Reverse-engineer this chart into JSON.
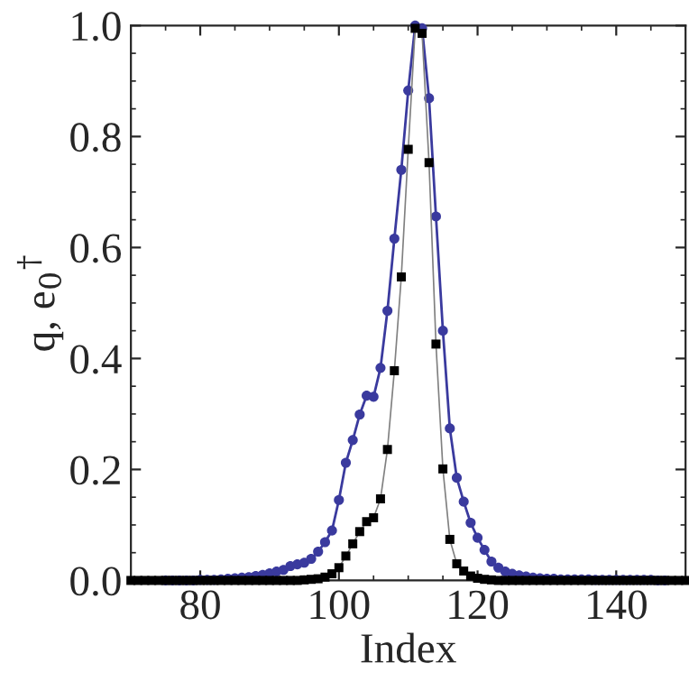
{
  "chart_data": {
    "type": "line",
    "xlabel": "Index",
    "ylabel": "q, e$_{0}$$^{†}$",
    "x": [
      70,
      71,
      72,
      73,
      74,
      75,
      76,
      77,
      78,
      79,
      80,
      81,
      82,
      83,
      84,
      85,
      86,
      87,
      88,
      89,
      90,
      91,
      92,
      93,
      94,
      95,
      96,
      97,
      98,
      99,
      100,
      101,
      102,
      103,
      104,
      105,
      106,
      107,
      108,
      109,
      110,
      111,
      112,
      113,
      114,
      115,
      116,
      117,
      118,
      119,
      120,
      121,
      122,
      123,
      124,
      125,
      126,
      127,
      128,
      129,
      130,
      131,
      132,
      133,
      134,
      135,
      136,
      137,
      138,
      139,
      140,
      141,
      142,
      143,
      144,
      145,
      146,
      147,
      148,
      149,
      150
    ],
    "series": [
      {
        "color": "#3a3a9e",
        "marker": "circle",
        "values": [
          null,
          null,
          null,
          null,
          null,
          0,
          0,
          0,
          0,
          0,
          0.001,
          0.001,
          0.001,
          0.002,
          0.003,
          0.004,
          0.005,
          0.006,
          0.008,
          0.01,
          0.013,
          0.016,
          0.019,
          0.026,
          0.029,
          0.032,
          0.039,
          0.052,
          0.069,
          0.09,
          0.145,
          0.212,
          0.253,
          0.299,
          0.333,
          0.331,
          0.383,
          0.486,
          0.616,
          0.74,
          0.883,
          1.0,
          0.995,
          0.869,
          0.656,
          0.45,
          0.274,
          0.185,
          0.142,
          0.104,
          0.077,
          0.055,
          0.034,
          0.023,
          0.016,
          0.012,
          0.009,
          0.007,
          0.005,
          0.004,
          0.003,
          0.003,
          0.002,
          0.002,
          0.002,
          0.002,
          0.002,
          0.001,
          0.001,
          0.001,
          0.001,
          0.001,
          0.001,
          0.001,
          0.001,
          0.001,
          0,
          0,
          null,
          null,
          null
        ]
      },
      {
        "color": "#000000",
        "marker": "square",
        "values": [
          0,
          0,
          0,
          0,
          0,
          0,
          0,
          0,
          0,
          0,
          0,
          0,
          0,
          0,
          0,
          0,
          0,
          0,
          0,
          0,
          0,
          0,
          0,
          0,
          0,
          0.001,
          0.002,
          0.003,
          0.006,
          0.012,
          0.023,
          0.044,
          0.066,
          0.088,
          0.106,
          0.113,
          0.147,
          0.236,
          0.378,
          0.547,
          0.777,
          0.995,
          0.986,
          0.753,
          0.426,
          0.201,
          0.074,
          0.03,
          0.017,
          0.008,
          0.004,
          0.002,
          0.001,
          0,
          0,
          0,
          0,
          0,
          0,
          0,
          0,
          0,
          0,
          0,
          0,
          0,
          0,
          0,
          0,
          0,
          0,
          0,
          0,
          0,
          0,
          0,
          0,
          0,
          0,
          0,
          0
        ]
      }
    ],
    "xlim": [
      70,
      150
    ],
    "xticks": [
      80,
      100,
      120,
      140
    ],
    "ylim": [
      0,
      1.0
    ],
    "yticks": [
      {
        "value": 0,
        "label": "0.0"
      },
      {
        "value": 0.2,
        "label": "0.2"
      },
      {
        "value": 0.4,
        "label": "0.4"
      },
      {
        "value": 0.6,
        "label": "0.6"
      },
      {
        "value": 0.8,
        "label": "0.8"
      },
      {
        "value": 1.0,
        "label": "1.0"
      }
    ],
    "grid": false,
    "legend": false
  }
}
